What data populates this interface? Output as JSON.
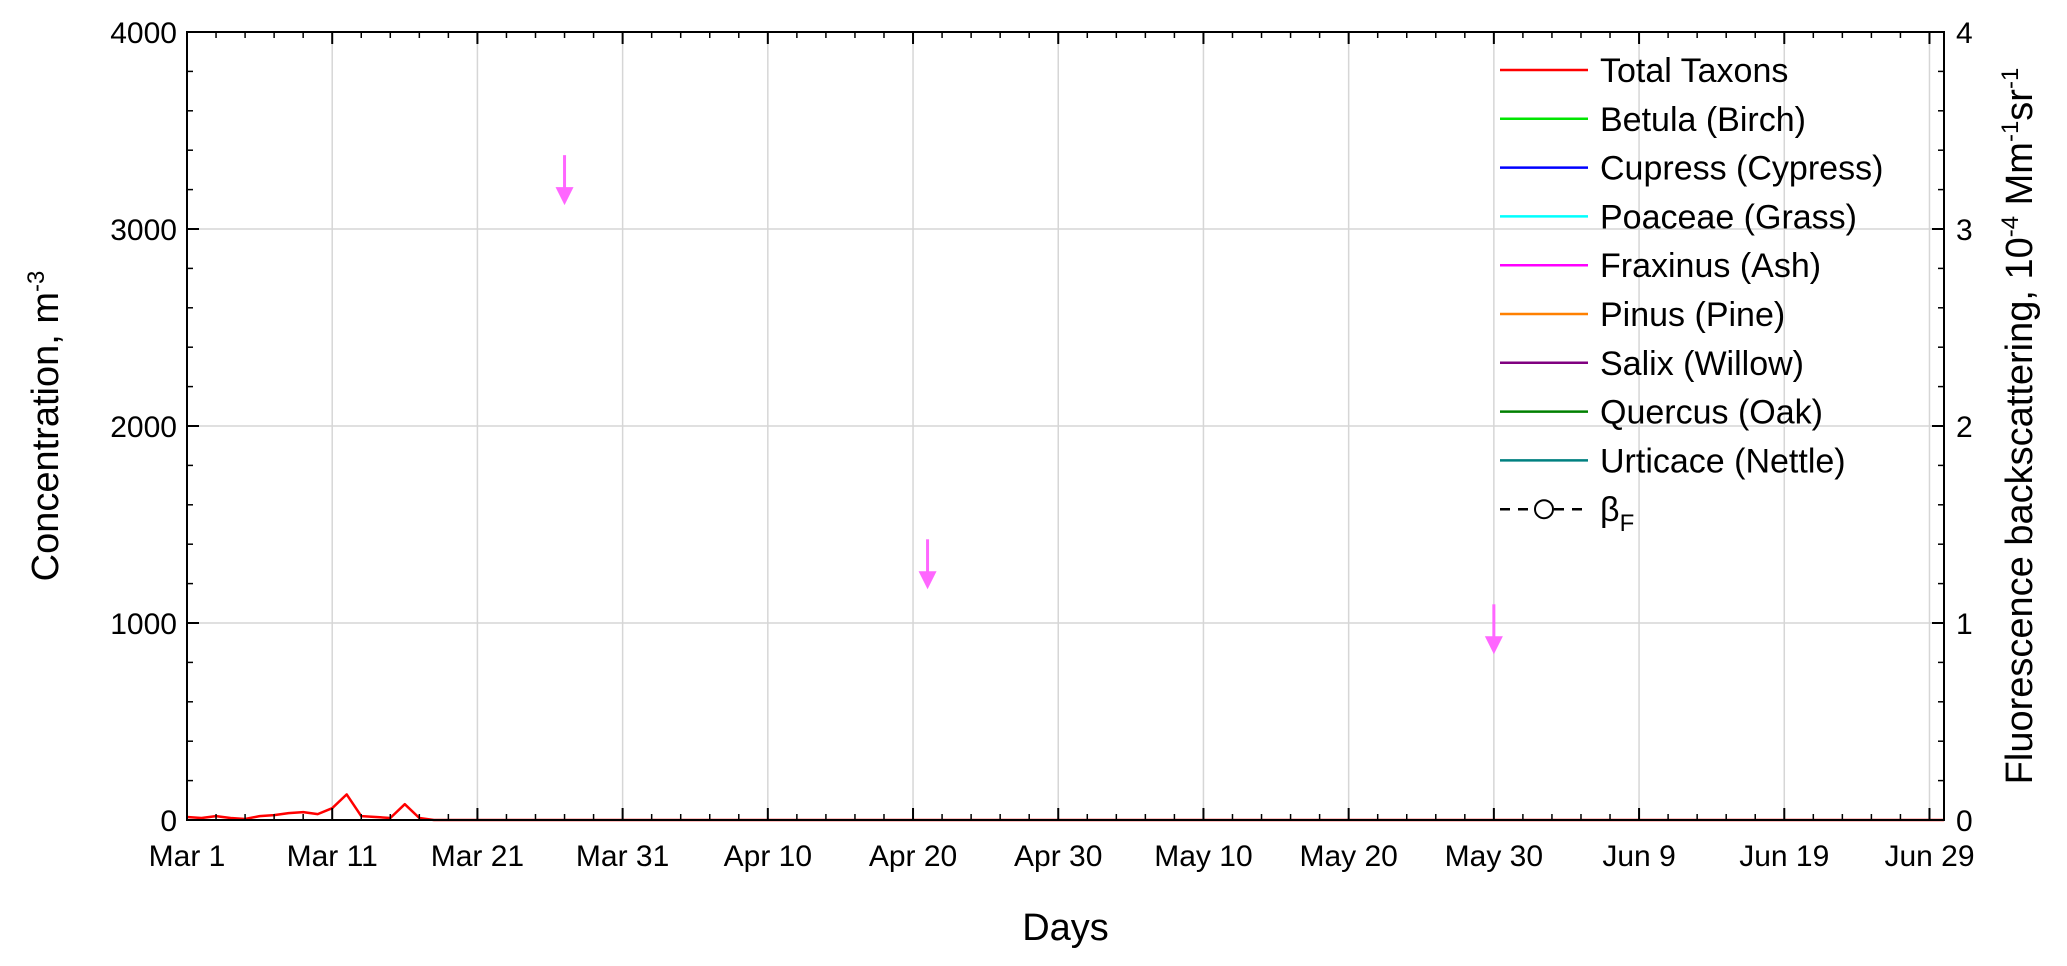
{
  "chart_data": {
    "type": "line",
    "title": "",
    "xlabel": "Days",
    "ylabel_left": {
      "main": "Concentration, m",
      "sup": "-3"
    },
    "ylabel_right": {
      "main": "Fluorescence backscattering, 10",
      "sup1": "-4",
      "mid": " Mm",
      "sup2": "-1",
      "mid2": "sr",
      "sup3": "-1"
    },
    "ylim_left": [
      0,
      4000
    ],
    "ylim_right": [
      0,
      4
    ],
    "xlim": [
      0,
      121
    ],
    "grid": true,
    "legend_position": "top-right",
    "x_ticks": [
      {
        "x": 0,
        "label": "Mar 1"
      },
      {
        "x": 10,
        "label": "Mar 11"
      },
      {
        "x": 20,
        "label": "Mar 21"
      },
      {
        "x": 30,
        "label": "Mar 31"
      },
      {
        "x": 40,
        "label": "Apr 10"
      },
      {
        "x": 50,
        "label": "Apr 20"
      },
      {
        "x": 60,
        "label": "Apr 30"
      },
      {
        "x": 70,
        "label": "May 10"
      },
      {
        "x": 80,
        "label": "May 20"
      },
      {
        "x": 90,
        "label": "May 30"
      },
      {
        "x": 100,
        "label": "Jun 9"
      },
      {
        "x": 110,
        "label": "Jun 19"
      },
      {
        "x": 120,
        "label": "Jun 29"
      }
    ],
    "y_ticks_left": [
      {
        "y": 0,
        "label": "0"
      },
      {
        "y": 1000,
        "label": "1000"
      },
      {
        "y": 2000,
        "label": "2000"
      },
      {
        "y": 3000,
        "label": "3000"
      },
      {
        "y": 4000,
        "label": "4000"
      }
    ],
    "y_ticks_right": [
      {
        "y": 0,
        "label": "0"
      },
      {
        "y": 1,
        "label": "1"
      },
      {
        "y": 2,
        "label": "2"
      },
      {
        "y": 3,
        "label": "3"
      },
      {
        "y": 4,
        "label": "4"
      }
    ],
    "series": [
      {
        "name": "Total Taxons",
        "color": "#ff0000",
        "x": [
          0,
          1,
          2,
          3,
          4,
          5,
          6,
          7,
          8,
          9,
          10,
          11,
          12,
          13,
          14,
          15,
          16,
          17,
          18,
          19,
          20,
          21,
          22,
          23,
          24,
          25,
          26,
          27,
          28,
          29,
          30,
          31,
          32,
          33,
          34,
          35,
          36,
          37,
          38,
          39,
          40,
          41,
          42,
          43,
          44,
          45,
          46,
          47,
          48,
          49,
          50,
          51,
          52,
          53,
          54,
          55,
          56,
          57,
          58,
          59,
          60,
          61,
          62,
          63,
          64,
          65,
          66,
          67,
          68,
          69,
          70,
          71,
          72,
          73,
          74,
          75,
          76,
          77,
          78,
          79,
          80,
          81,
          82,
          83,
          84,
          85,
          86,
          87,
          88,
          89,
          90,
          91,
          92,
          93,
          94,
          95,
          96,
          97,
          98,
          99,
          100,
          101,
          102,
          103,
          104,
          105,
          106,
          107,
          108,
          109,
          110,
          111,
          112,
          113,
          114,
          115,
          116,
          117,
          118,
          119,
          120,
          121
        ],
        "y": [
          15,
          10,
          20,
          10,
          5,
          20,
          25,
          35,
          40,
          30,
          60,
          130,
          20,
          15,
          10,
          80,
          10,
          0,
          0,
          0,
          0,
          0,
          0,
          0,
          0,
          0,
          0,
          0,
          0,
          0,
          0,
          0,
          0,
          0,
          0,
          0,
          0,
          0,
          0,
          0,
          0,
          0,
          0,
          0,
          0,
          0,
          0,
          0,
          0,
          0,
          0,
          0,
          0,
          0,
          0,
          0,
          0,
          0,
          0,
          0,
          0,
          0,
          0,
          0,
          0,
          0,
          0,
          0,
          0,
          0,
          0,
          0,
          0,
          0,
          0,
          0,
          0,
          0,
          0,
          0,
          0,
          0,
          0,
          0,
          0,
          0,
          0,
          0,
          0,
          0,
          0,
          0,
          0,
          0,
          0,
          0,
          0,
          0,
          0,
          0,
          0,
          0,
          0,
          0,
          0,
          0,
          0,
          0,
          0,
          0,
          0,
          0,
          0,
          0,
          0,
          0,
          0,
          0,
          0,
          0,
          0,
          0
        ]
      },
      {
        "name": "Betula (Birch)",
        "color": "#00e600",
        "x": [],
        "y": []
      },
      {
        "name": "Cupress (Cypress)",
        "color": "#0000ff",
        "x": [],
        "y": []
      },
      {
        "name": "Poaceae (Grass)",
        "color": "#00ffff",
        "x": [],
        "y": []
      },
      {
        "name": "Fraxinus (Ash)",
        "color": "#ff00ff",
        "x": [],
        "y": []
      },
      {
        "name": "Pinus (Pine)",
        "color": "#ff8000",
        "x": [],
        "y": []
      },
      {
        "name": "Salix (Willow)",
        "color": "#800080",
        "x": [],
        "y": []
      },
      {
        "name": "Quercus (Oak)",
        "color": "#008000",
        "x": [],
        "y": []
      },
      {
        "name": "Urticace (Nettle)",
        "color": "#008080",
        "x": [],
        "y": []
      },
      {
        "name": "βF",
        "legend_main": "β",
        "legend_sub": "F",
        "color": "#000000",
        "dashed": true,
        "marker": "circle",
        "axis": "right",
        "x": [],
        "y": []
      }
    ],
    "annotations": [
      {
        "type": "arrow-down",
        "color": "#ff66ff",
        "x": 26,
        "y_right": 3.05
      },
      {
        "type": "arrow-down",
        "color": "#ff66ff",
        "x": 51,
        "y_right": 1.1
      },
      {
        "type": "arrow-down",
        "color": "#ff66ff",
        "x": 90,
        "y_right": 0.77
      }
    ]
  }
}
